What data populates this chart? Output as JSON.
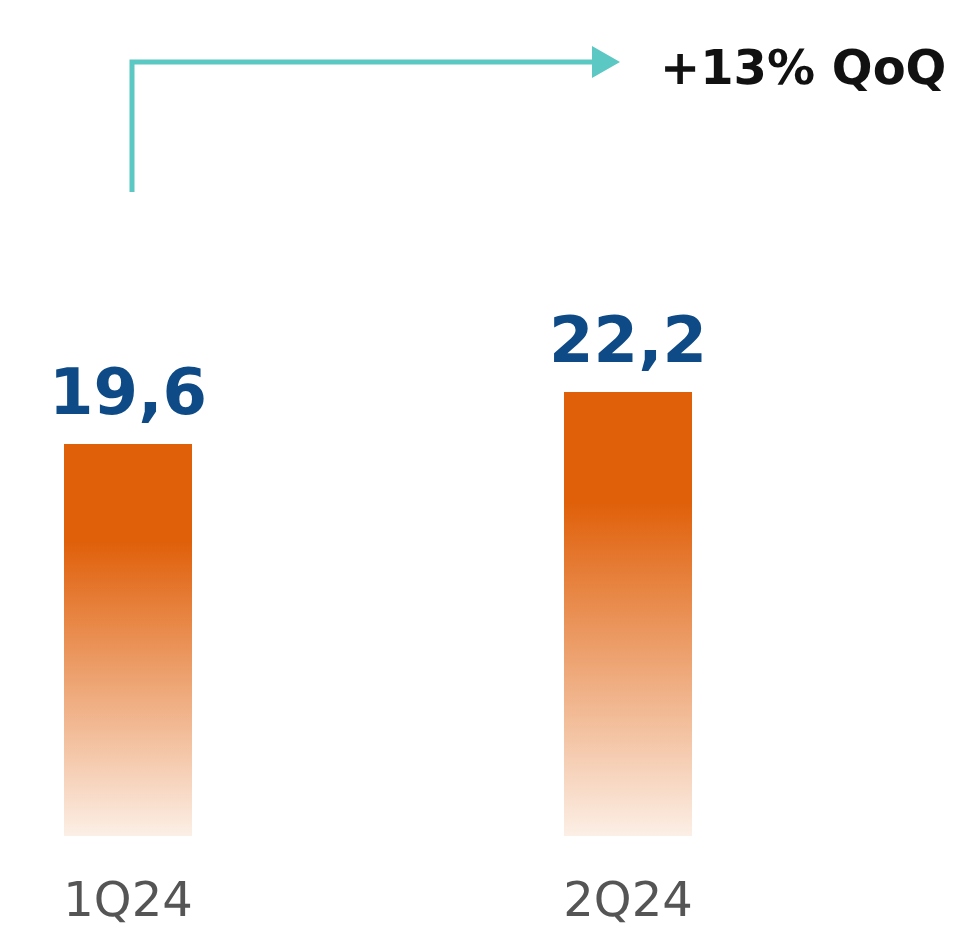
{
  "chart_data": {
    "type": "bar",
    "categories": [
      "1Q24",
      "2Q24"
    ],
    "values": [
      19.6,
      22.2
    ],
    "value_labels": [
      "19,6",
      "22,2"
    ],
    "color": "#e0600a",
    "annotations": [
      "+13% QoQ"
    ]
  }
}
